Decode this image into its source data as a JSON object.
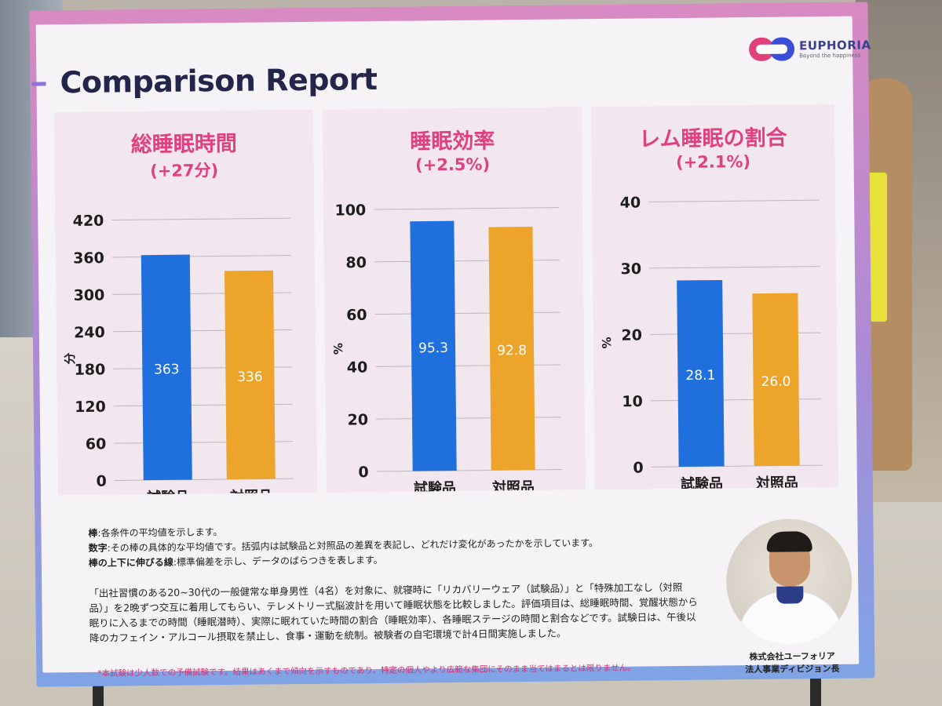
{
  "report": {
    "title": "Comparison Report",
    "brand": "EUPHORIA",
    "brand_tag": "Beyond the happiness"
  },
  "chart_data": [
    {
      "type": "bar",
      "title": "総睡眠時間",
      "subtitle": "(+27分)",
      "ylabel": "分",
      "categories": [
        "試験品",
        "対照品"
      ],
      "values": [
        363,
        336
      ],
      "value_labels": [
        "363",
        "336"
      ],
      "ylim": [
        0,
        420
      ],
      "yticks": [
        0,
        60,
        120,
        180,
        240,
        300,
        360,
        420
      ],
      "colors": [
        "#1f6fdd",
        "#eca42a"
      ],
      "grid": true
    },
    {
      "type": "bar",
      "title": "睡眠効率",
      "subtitle": "(+2.5%)",
      "ylabel": "%",
      "categories": [
        "試験品",
        "対照品"
      ],
      "values": [
        95.3,
        92.8
      ],
      "value_labels": [
        "95.3",
        "92.8"
      ],
      "ylim": [
        0,
        100
      ],
      "yticks": [
        0,
        20,
        40,
        60,
        80,
        100
      ],
      "colors": [
        "#1f6fdd",
        "#eca42a"
      ],
      "grid": true
    },
    {
      "type": "bar",
      "title": "レム睡眠の割合",
      "subtitle": "(+2.1%)",
      "ylabel": "%",
      "categories": [
        "試験品",
        "対照品"
      ],
      "values": [
        28.1,
        26.0
      ],
      "value_labels": [
        "28.1",
        "26.0"
      ],
      "ylim": [
        0,
        40
      ],
      "yticks": [
        0,
        10,
        20,
        30,
        40
      ],
      "colors": [
        "#1f6fdd",
        "#eca42a"
      ],
      "grid": true
    }
  ],
  "legend_notes": {
    "bar_label": "棒",
    "bar_text": "各条件の平均値を示します。",
    "number_label": "数字",
    "number_text": "その棒の具体的な平均値です。括弧内は試験品と対照品の差異を表記し、どれだけ変化があったかを示しています。",
    "line_label": "棒の上下に伸びる線",
    "line_text": "標準偏差を示し、データのばらつきを表します。"
  },
  "description": "「出社習慣のある20~30代の一般健常な単身男性（4名）を対象に、就寝時に「リカバリーウェア（試験品）」と「特殊加工なし（対照品）」を2晩ずつ交互に着用してもらい、テレメトリー式脳波計を用いて睡眠状態を比較しました。評価項目は、総睡眠時間、覚醒状態から眠りに入るまでの時間（睡眠潜時）、実際に眠れていた時間の割合（睡眠効率）、各睡眠ステージの時間と割合などです。試験日は、午後以降のカフェイン・アルコール摂取を禁止し、食事・運動を統制。被験者の自宅環境で計4日間実施しました。",
  "footnote": "*本試験は少人数での予備試験です。結果はあくまで傾向を示すものであり、特定の個人やより広範な集団にそのまま当てはまるとは限りません。",
  "person": {
    "company": "株式会社ユーフォリア",
    "role": "法人事業ディビジョン長"
  }
}
